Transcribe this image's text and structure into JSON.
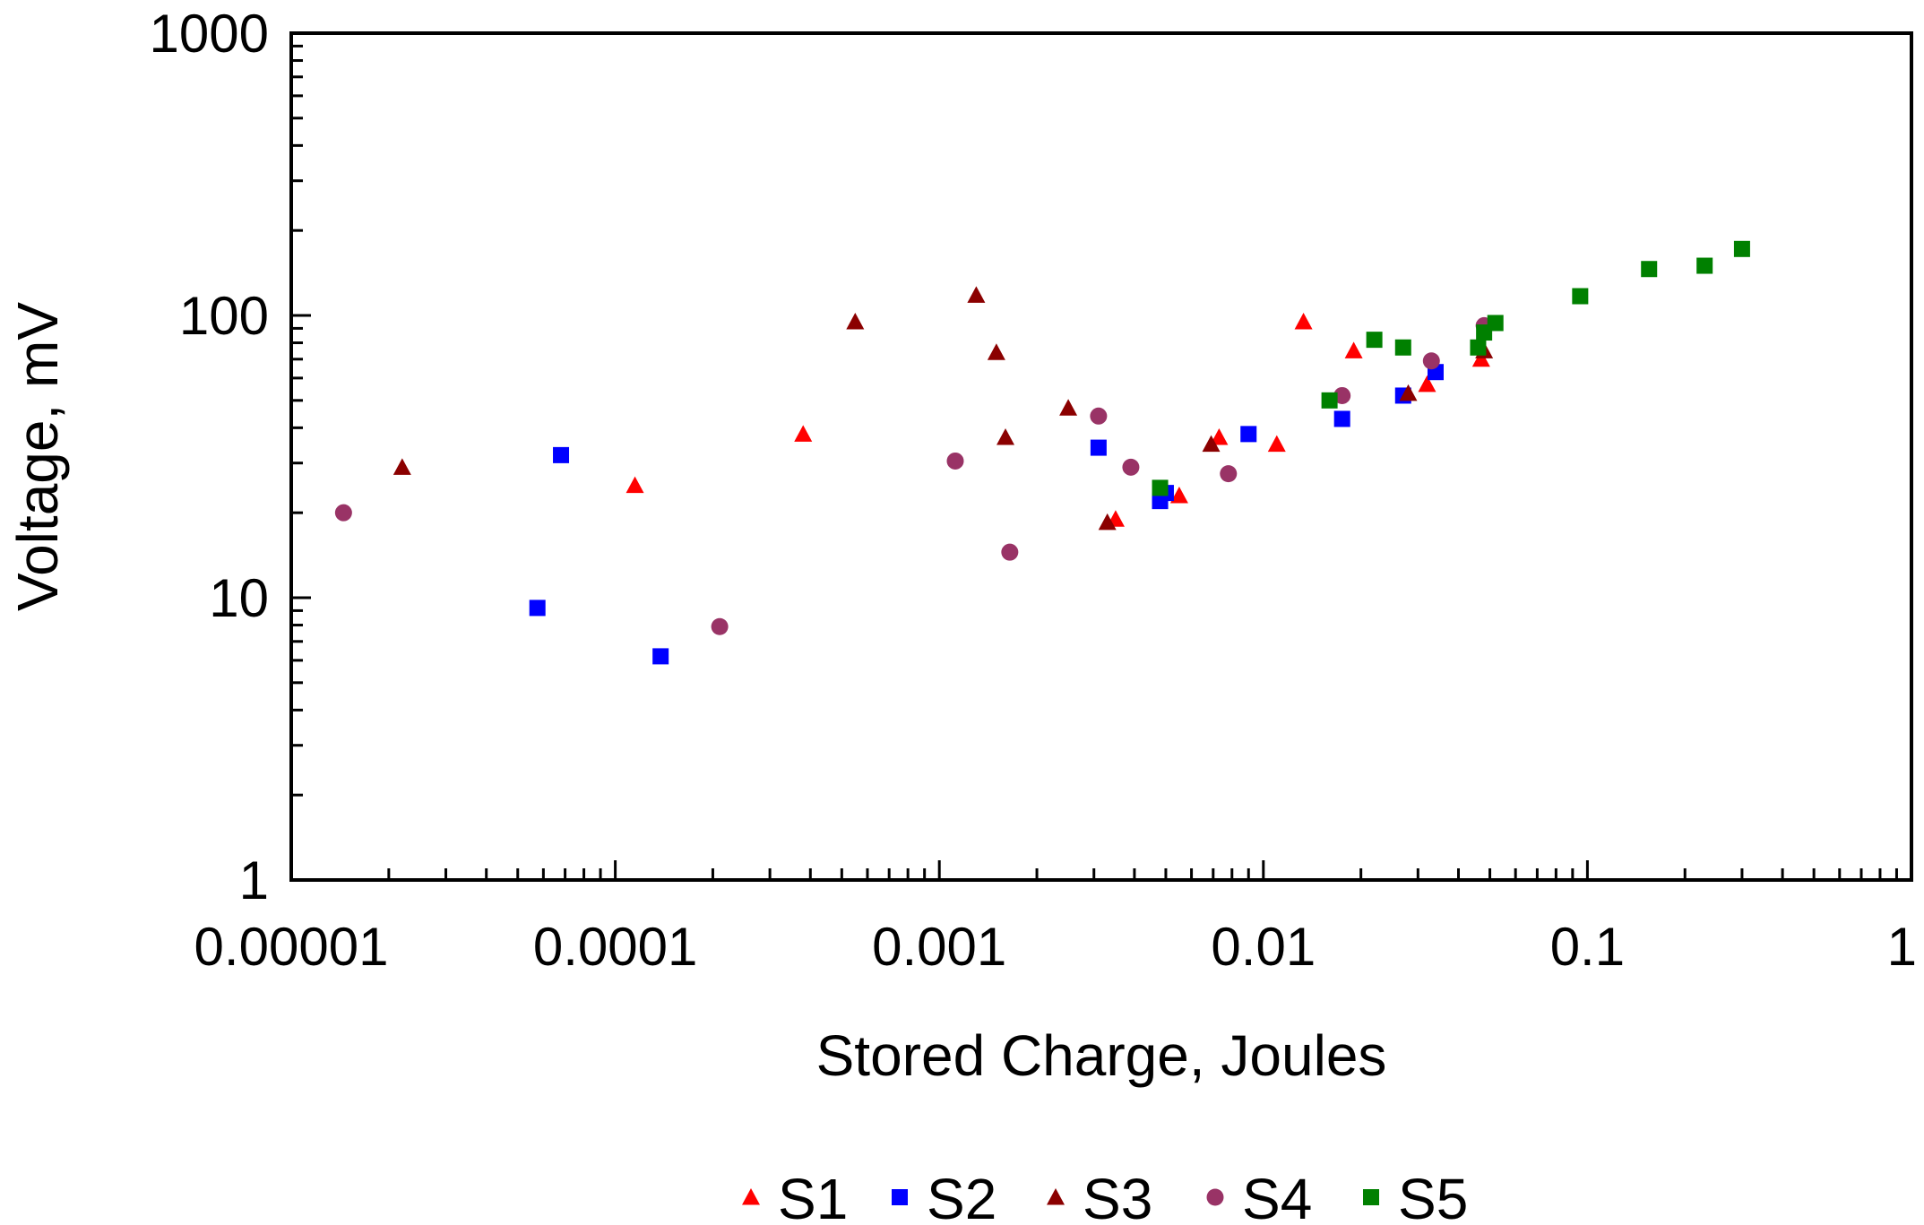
{
  "chart_data": {
    "type": "scatter",
    "title": "",
    "xlabel": "Stored Charge, Joules",
    "ylabel": "Voltage, mV",
    "x_scale": "log",
    "y_scale": "log",
    "xlim": [
      1e-05,
      1
    ],
    "ylim": [
      1,
      1000
    ],
    "x_tick_labels": [
      "0.00001",
      "0.0001",
      "0.001",
      "0.01",
      "0.1",
      "1"
    ],
    "y_tick_labels": [
      "1",
      "10",
      "100",
      "1000"
    ],
    "grid": false,
    "legend_position": "bottom",
    "series": [
      {
        "name": "S1",
        "marker": "triangle",
        "color": "#ff0000",
        "points": [
          [
            0.000115,
            25
          ],
          [
            0.00038,
            38
          ],
          [
            0.0035,
            19
          ],
          [
            0.0055,
            23
          ],
          [
            0.0073,
            37
          ],
          [
            0.011,
            35
          ],
          [
            0.0133,
            95
          ],
          [
            0.019,
            75
          ],
          [
            0.032,
            57
          ],
          [
            0.047,
            70
          ]
        ]
      },
      {
        "name": "S2",
        "marker": "square",
        "color": "#0000ff",
        "points": [
          [
            5.75e-05,
            9.2
          ],
          [
            6.8e-05,
            32
          ],
          [
            0.000138,
            6.2
          ],
          [
            0.0031,
            34
          ],
          [
            0.0048,
            22
          ],
          [
            0.005,
            23.5
          ],
          [
            0.009,
            38
          ],
          [
            0.0175,
            43
          ],
          [
            0.027,
            52
          ],
          [
            0.034,
            63
          ]
        ]
      },
      {
        "name": "S3",
        "marker": "triangle",
        "color": "#8b0000",
        "points": [
          [
            2.2e-05,
            29
          ],
          [
            0.00055,
            95
          ],
          [
            0.0013,
            118
          ],
          [
            0.0015,
            74
          ],
          [
            0.0016,
            37
          ],
          [
            0.0025,
            47
          ],
          [
            0.0033,
            18.5
          ],
          [
            0.0069,
            35
          ],
          [
            0.028,
            53
          ],
          [
            0.048,
            75
          ]
        ]
      },
      {
        "name": "S4",
        "marker": "circle",
        "color": "#993366",
        "points": [
          [
            1.45e-05,
            20
          ],
          [
            0.00021,
            7.9
          ],
          [
            0.00112,
            30.5
          ],
          [
            0.00165,
            14.5
          ],
          [
            0.0031,
            44
          ],
          [
            0.0039,
            29
          ],
          [
            0.0078,
            27.5
          ],
          [
            0.0175,
            52
          ],
          [
            0.033,
            69
          ],
          [
            0.048,
            92
          ]
        ]
      },
      {
        "name": "S5",
        "marker": "square",
        "color": "#008000",
        "points": [
          [
            0.0048,
            24.5
          ],
          [
            0.016,
            50
          ],
          [
            0.022,
            82
          ],
          [
            0.027,
            77
          ],
          [
            0.046,
            77
          ],
          [
            0.048,
            87
          ],
          [
            0.052,
            94
          ],
          [
            0.095,
            117
          ],
          [
            0.155,
            146
          ],
          [
            0.23,
            150
          ],
          [
            0.3,
            172
          ]
        ]
      }
    ]
  }
}
